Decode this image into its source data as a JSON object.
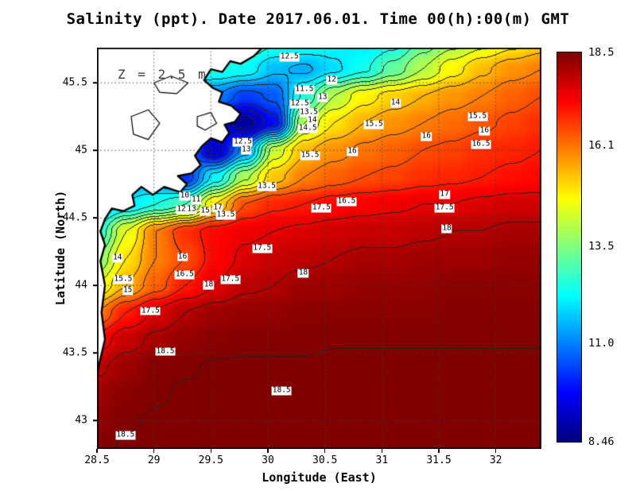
{
  "title": "Salinity (ppt). Date 2017.06.01. Time 00(h):00(m) GMT",
  "annotation": "Z = 2.5 m",
  "axes": {
    "x": {
      "label": "Longitude (East)",
      "min": 28.5,
      "max": 32.4,
      "ticks": [
        28.5,
        29,
        29.5,
        30,
        30.5,
        31,
        31.5,
        32
      ],
      "tick_labels": [
        "28.5",
        "29",
        "29.5",
        "30",
        "30.5",
        "31",
        "31.5",
        "32"
      ]
    },
    "y": {
      "label": "Latitude (North)",
      "min": 42.79,
      "max": 45.76,
      "ticks": [
        43,
        43.5,
        44,
        44.5,
        45,
        45.5
      ],
      "tick_labels": [
        "43",
        "43.5",
        "44",
        "44.5",
        "45",
        "45.5"
      ]
    }
  },
  "colorbar": {
    "min": 8.46,
    "max": 18.5,
    "tick_values": [
      18.5,
      16.1,
      13.5,
      11.0,
      8.46
    ],
    "tick_labels": [
      "18.5",
      "16.1",
      "13.5",
      "11.0",
      "8.46"
    ],
    "colormap": "jet",
    "top_color": "#8b0000",
    "bottom_color": "#00008b"
  },
  "chart_data": {
    "type": "heatmap",
    "title": "Salinity (ppt). Date 2017.06.01. Time 00(h):00(m) GMT",
    "xlabel": "Longitude (East)",
    "ylabel": "Latitude (North)",
    "xlim": [
      28.5,
      32.4
    ],
    "ylim": [
      42.79,
      45.76
    ],
    "cmin": 8.46,
    "cmax": 18.5,
    "contour_interval": 0.5,
    "depth_m": 2.5,
    "grid_lon": [
      28.5,
      28.76,
      29.02,
      29.28,
      29.54,
      29.8,
      30.06,
      30.32,
      30.58,
      30.84,
      31.1,
      31.36,
      31.62,
      31.88,
      32.14,
      32.4
    ],
    "grid_lat": [
      45.8,
      45.6,
      45.4,
      45.2,
      45.0,
      44.8,
      44.6,
      44.4,
      44.2,
      44.0,
      43.8,
      43.6,
      43.4,
      43.2,
      43.0,
      42.8
    ],
    "salinity_grid": [
      [
        13.0,
        13.0,
        13.0,
        13.0,
        13.0,
        13.0,
        12.6,
        12.5,
        12.2,
        12.0,
        12.3,
        13.2,
        13.8,
        14.3,
        14.8,
        15.2
      ],
      [
        12.5,
        12.5,
        12.5,
        12.5,
        12.5,
        12.3,
        11.6,
        11.4,
        11.9,
        12.4,
        13.2,
        14.0,
        14.8,
        15.4,
        15.8,
        16.0
      ],
      [
        12.0,
        12.0,
        12.0,
        11.5,
        11.0,
        10.3,
        10.6,
        12.6,
        14.0,
        14.8,
        15.2,
        15.5,
        15.8,
        16.0,
        16.3,
        16.5
      ],
      [
        12.0,
        12.0,
        11.5,
        10.5,
        9.5,
        8.7,
        9.8,
        14.0,
        15.0,
        15.5,
        15.8,
        16.0,
        16.2,
        16.4,
        16.6,
        16.8
      ],
      [
        12.5,
        12.5,
        12.0,
        11.0,
        9.2,
        11.2,
        14.2,
        15.4,
        15.8,
        16.1,
        16.3,
        16.5,
        16.6,
        16.8,
        16.9,
        17.0
      ],
      [
        12.0,
        11.5,
        11.0,
        10.2,
        12.2,
        13.9,
        15.3,
        16.0,
        16.3,
        16.5,
        16.6,
        16.8,
        16.9,
        17.0,
        17.1,
        17.2
      ],
      [
        11.5,
        12.0,
        12.5,
        13.0,
        15.0,
        16.5,
        16.9,
        17.0,
        17.2,
        17.3,
        17.4,
        17.5,
        17.5,
        17.6,
        17.7,
        17.7
      ],
      [
        12.5,
        14.5,
        16.0,
        16.8,
        17.2,
        17.4,
        17.5,
        17.6,
        17.7,
        17.8,
        17.8,
        17.9,
        18.0,
        18.0,
        18.1,
        18.1
      ],
      [
        13.5,
        15.0,
        16.0,
        16.5,
        17.2,
        17.6,
        17.8,
        17.9,
        18.0,
        18.1,
        18.1,
        18.2,
        18.2,
        18.2,
        18.3,
        18.3
      ],
      [
        14.5,
        15.5,
        16.3,
        17.0,
        17.5,
        17.9,
        18.0,
        18.2,
        18.2,
        18.3,
        18.3,
        18.3,
        18.4,
        18.4,
        18.4,
        18.4
      ],
      [
        16.0,
        17.0,
        17.6,
        18.0,
        18.2,
        18.3,
        18.3,
        18.4,
        18.4,
        18.4,
        18.4,
        18.4,
        18.45,
        18.45,
        18.45,
        18.45
      ],
      [
        17.2,
        17.8,
        18.1,
        18.3,
        18.4,
        18.45,
        18.45,
        18.45,
        18.48,
        18.48,
        18.48,
        18.48,
        18.48,
        18.48,
        18.48,
        18.48
      ],
      [
        17.9,
        18.2,
        18.45,
        18.48,
        18.52,
        18.52,
        18.52,
        18.52,
        18.55,
        18.55,
        18.55,
        18.55,
        18.55,
        18.55,
        18.55,
        18.55
      ],
      [
        18.2,
        18.4,
        18.48,
        18.52,
        18.55,
        18.55,
        18.55,
        18.55,
        18.55,
        18.55,
        18.55,
        18.55,
        18.55,
        18.55,
        18.55,
        18.55
      ],
      [
        18.35,
        18.48,
        18.52,
        18.55,
        18.55,
        18.55,
        18.55,
        18.55,
        18.55,
        18.55,
        18.55,
        18.55,
        18.55,
        18.55,
        18.55,
        18.55
      ],
      [
        18.45,
        18.52,
        18.55,
        18.55,
        18.55,
        18.55,
        18.55,
        18.55,
        18.55,
        18.55,
        18.55,
        18.55,
        18.55,
        18.55,
        18.55,
        18.55
      ]
    ],
    "contour_labels": [
      {
        "lon": 30.19,
        "lat": 45.69,
        "text": "12.5"
      },
      {
        "lon": 30.56,
        "lat": 45.52,
        "text": "12"
      },
      {
        "lon": 30.32,
        "lat": 45.45,
        "text": "11.5"
      },
      {
        "lon": 30.48,
        "lat": 45.39,
        "text": "13"
      },
      {
        "lon": 30.28,
        "lat": 45.34,
        "text": "12.5"
      },
      {
        "lon": 31.12,
        "lat": 45.35,
        "text": "14"
      },
      {
        "lon": 30.36,
        "lat": 45.28,
        "text": "13.5"
      },
      {
        "lon": 30.39,
        "lat": 45.22,
        "text": "14"
      },
      {
        "lon": 30.35,
        "lat": 45.16,
        "text": "14.5"
      },
      {
        "lon": 31.84,
        "lat": 45.25,
        "text": "15.5"
      },
      {
        "lon": 31.9,
        "lat": 45.14,
        "text": "16"
      },
      {
        "lon": 30.93,
        "lat": 45.19,
        "text": "15.5"
      },
      {
        "lon": 31.39,
        "lat": 45.1,
        "text": "16"
      },
      {
        "lon": 31.87,
        "lat": 45.04,
        "text": "16.5"
      },
      {
        "lon": 29.78,
        "lat": 45.06,
        "text": "12.5"
      },
      {
        "lon": 29.81,
        "lat": 45.0,
        "text": "13"
      },
      {
        "lon": 30.37,
        "lat": 44.96,
        "text": "15.5"
      },
      {
        "lon": 30.74,
        "lat": 44.99,
        "text": "16"
      },
      {
        "lon": 29.99,
        "lat": 44.73,
        "text": "13.5"
      },
      {
        "lon": 29.27,
        "lat": 44.66,
        "text": "10"
      },
      {
        "lon": 29.37,
        "lat": 44.63,
        "text": "11"
      },
      {
        "lon": 29.24,
        "lat": 44.56,
        "text": "12"
      },
      {
        "lon": 29.33,
        "lat": 44.56,
        "text": "13"
      },
      {
        "lon": 29.45,
        "lat": 44.55,
        "text": "15"
      },
      {
        "lon": 29.56,
        "lat": 44.57,
        "text": "17"
      },
      {
        "lon": 29.63,
        "lat": 44.52,
        "text": "13.5"
      },
      {
        "lon": 30.69,
        "lat": 44.62,
        "text": "16.5"
      },
      {
        "lon": 30.47,
        "lat": 44.57,
        "text": "17.5"
      },
      {
        "lon": 31.55,
        "lat": 44.67,
        "text": "17"
      },
      {
        "lon": 31.55,
        "lat": 44.57,
        "text": "17.5"
      },
      {
        "lon": 31.57,
        "lat": 44.42,
        "text": "18"
      },
      {
        "lon": 28.68,
        "lat": 44.2,
        "text": "14"
      },
      {
        "lon": 29.25,
        "lat": 44.21,
        "text": "16"
      },
      {
        "lon": 29.95,
        "lat": 44.27,
        "text": "17.5"
      },
      {
        "lon": 28.73,
        "lat": 44.04,
        "text": "15.5"
      },
      {
        "lon": 29.27,
        "lat": 44.08,
        "text": "16.5"
      },
      {
        "lon": 29.67,
        "lat": 44.04,
        "text": "17.5"
      },
      {
        "lon": 30.31,
        "lat": 44.09,
        "text": "18"
      },
      {
        "lon": 28.77,
        "lat": 43.96,
        "text": "15"
      },
      {
        "lon": 29.48,
        "lat": 44.0,
        "text": "18"
      },
      {
        "lon": 28.97,
        "lat": 43.81,
        "text": "17.5"
      },
      {
        "lon": 29.1,
        "lat": 43.51,
        "text": "18.5"
      },
      {
        "lon": 30.12,
        "lat": 43.22,
        "text": "18.5"
      },
      {
        "lon": 28.75,
        "lat": 42.89,
        "text": "18.5"
      }
    ],
    "coastline": [
      [
        29.95,
        45.76
      ],
      [
        29.88,
        45.7
      ],
      [
        29.76,
        45.64
      ],
      [
        29.67,
        45.66
      ],
      [
        29.6,
        45.58
      ],
      [
        29.5,
        45.6
      ],
      [
        29.44,
        45.52
      ],
      [
        29.52,
        45.46
      ],
      [
        29.6,
        45.43
      ],
      [
        29.57,
        45.36
      ],
      [
        29.68,
        45.33
      ],
      [
        29.76,
        45.27
      ],
      [
        29.71,
        45.21
      ],
      [
        29.62,
        45.19
      ],
      [
        29.66,
        45.13
      ],
      [
        29.6,
        45.06
      ],
      [
        29.5,
        45.09
      ],
      [
        29.42,
        45.03
      ],
      [
        29.36,
        44.96
      ],
      [
        29.41,
        44.89
      ],
      [
        29.33,
        44.83
      ],
      [
        29.21,
        44.81
      ],
      [
        29.29,
        44.75
      ],
      [
        29.23,
        44.69
      ],
      [
        29.09,
        44.73
      ],
      [
        28.99,
        44.67
      ],
      [
        28.89,
        44.73
      ],
      [
        28.81,
        44.67
      ],
      [
        28.83,
        44.59
      ],
      [
        28.73,
        44.55
      ],
      [
        28.63,
        44.57
      ],
      [
        28.57,
        44.49
      ],
      [
        28.53,
        44.4
      ],
      [
        28.57,
        44.3
      ],
      [
        28.53,
        44.18
      ],
      [
        28.57,
        44.0
      ],
      [
        28.54,
        43.8
      ],
      [
        28.57,
        43.6
      ],
      [
        28.52,
        43.42
      ],
      [
        28.5,
        43.34
      ],
      [
        28.5,
        45.76
      ]
    ],
    "inland_waters": [
      [
        [
          29.0,
          45.5
        ],
        [
          29.15,
          45.55
        ],
        [
          29.3,
          45.5
        ],
        [
          29.2,
          45.42
        ],
        [
          29.05,
          45.43
        ]
      ],
      [
        [
          28.8,
          45.25
        ],
        [
          28.95,
          45.3
        ],
        [
          29.05,
          45.2
        ],
        [
          28.95,
          45.08
        ],
        [
          28.82,
          45.12
        ]
      ],
      [
        [
          29.38,
          45.25
        ],
        [
          29.5,
          45.28
        ],
        [
          29.55,
          45.2
        ],
        [
          29.45,
          45.15
        ],
        [
          29.38,
          45.18
        ]
      ]
    ]
  }
}
